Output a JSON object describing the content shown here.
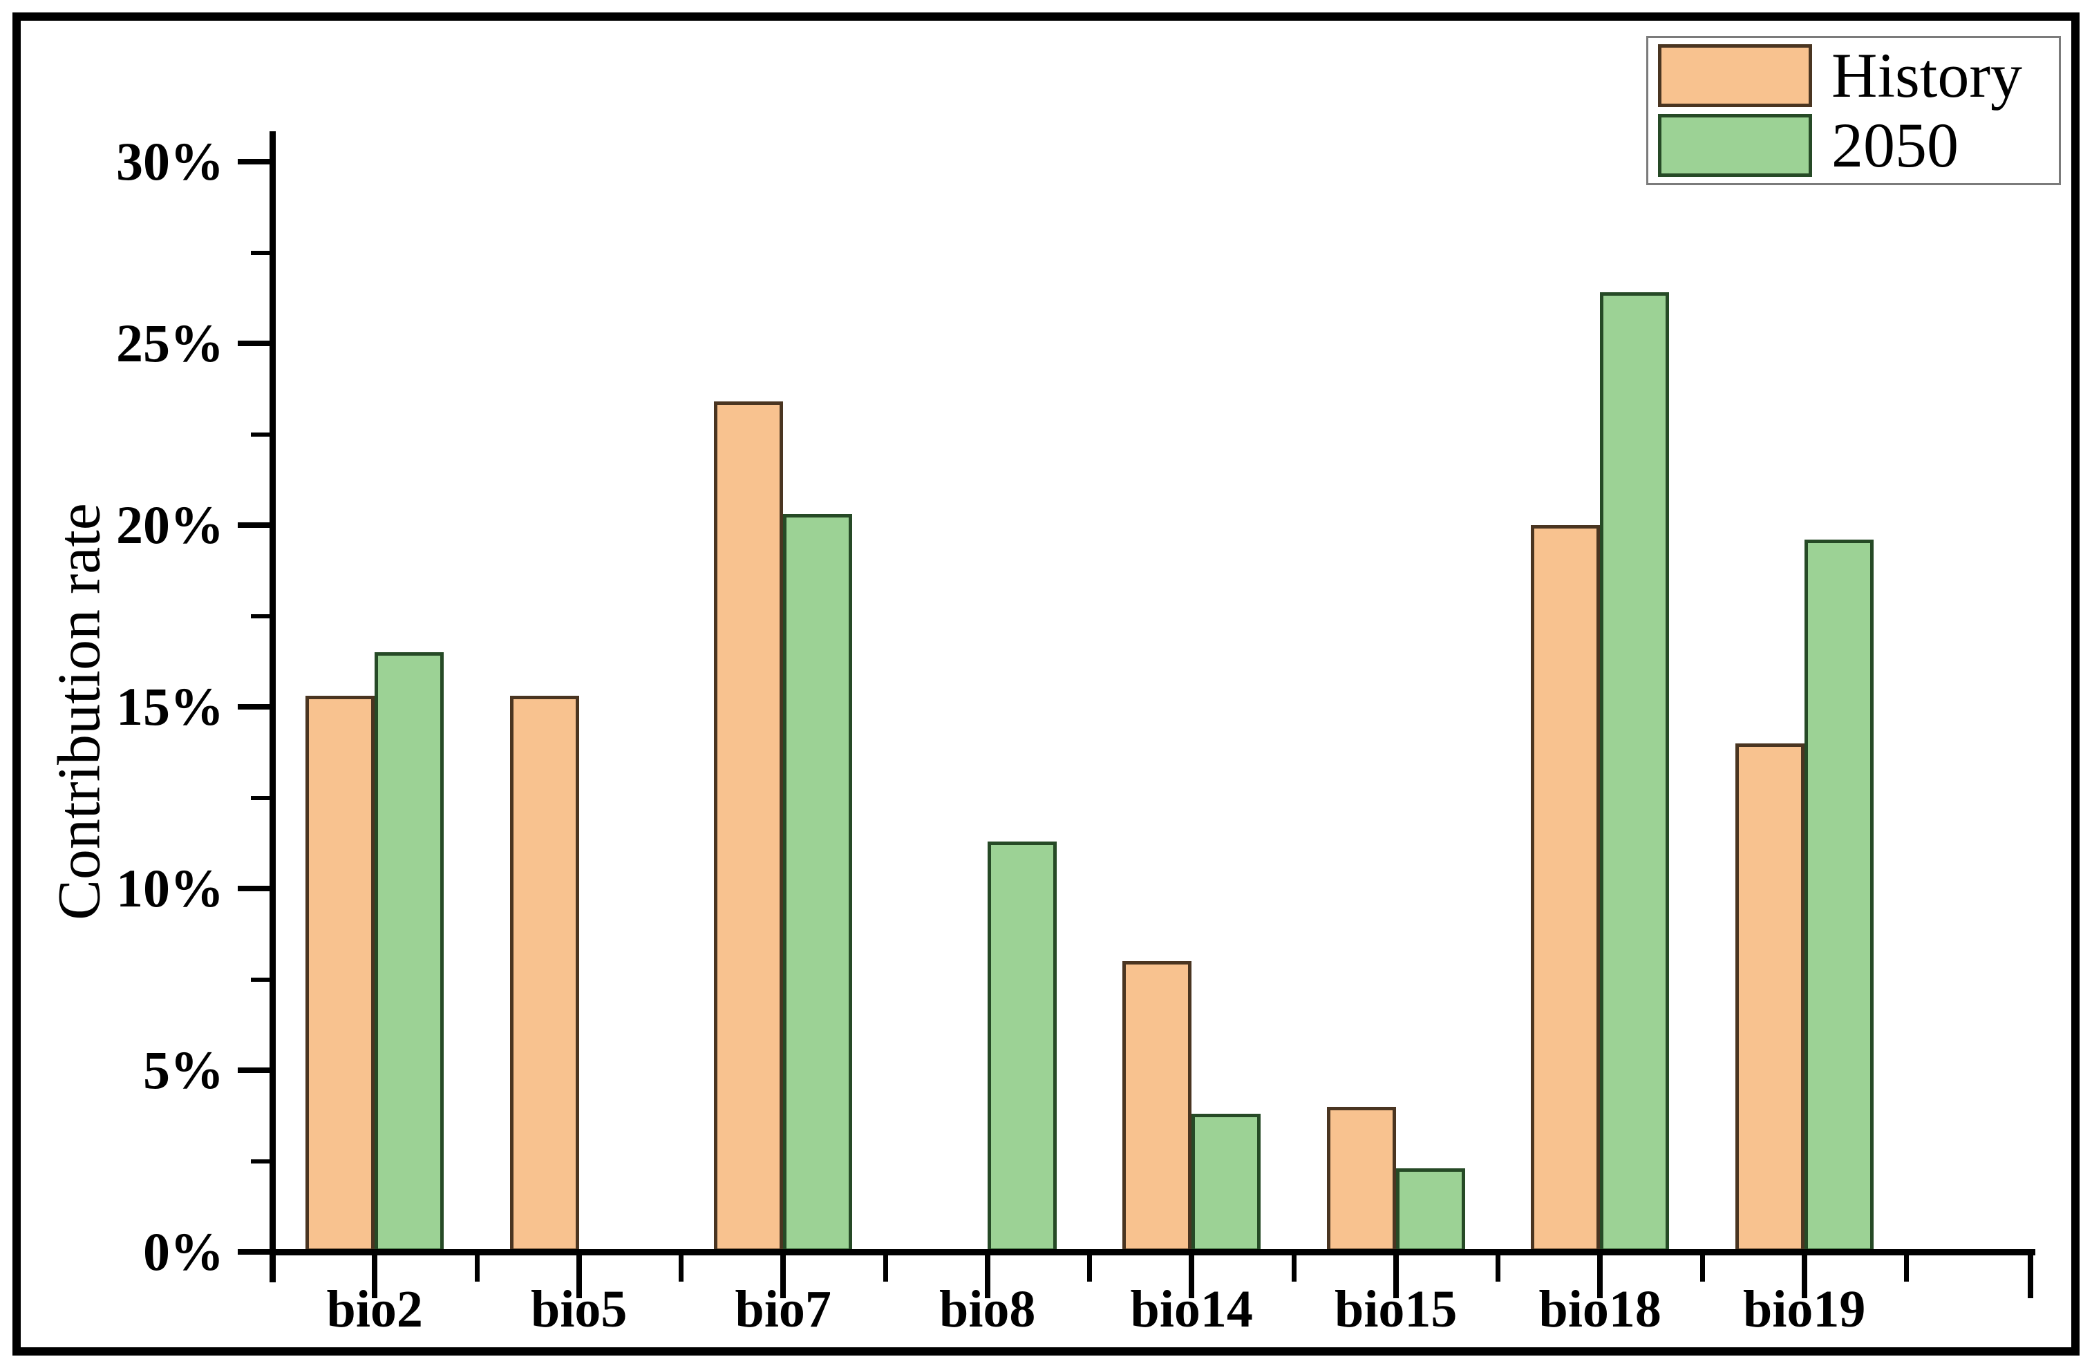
{
  "chart_data": {
    "type": "bar",
    "title": "",
    "xlabel": "",
    "ylabel": "Contribution rate",
    "categories": [
      "bio2",
      "bio5",
      "bio7",
      "bio8",
      "bio14",
      "bio15",
      "bio18",
      "bio19"
    ],
    "series": [
      {
        "name": "History",
        "color": "#f8c28f",
        "border_color": "#4a3521",
        "values": [
          15.3,
          15.3,
          23.4,
          0,
          8.0,
          4.0,
          20.0,
          14.0
        ]
      },
      {
        "name": "2050",
        "color": "#9cd295",
        "border_color": "#264a26",
        "values": [
          16.5,
          0,
          20.3,
          11.3,
          3.8,
          2.3,
          26.4,
          19.6
        ]
      }
    ],
    "ylim": [
      0,
      30
    ],
    "y_major_tick_values": [
      0,
      5,
      10,
      15,
      20,
      25,
      30
    ],
    "y_major_tick_labels": [
      "0%",
      "5%",
      "10%",
      "15%",
      "20%",
      "25%",
      "30%"
    ],
    "y_minor_tick_values": [
      2.5,
      7.5,
      12.5,
      17.5,
      22.5,
      27.5
    ],
    "grid": false,
    "legend_position": "top-right",
    "axis_color": "#000000",
    "background_color": "#ffffff"
  },
  "legend": {
    "items": [
      {
        "label": "History"
      },
      {
        "label": "2050"
      }
    ]
  }
}
